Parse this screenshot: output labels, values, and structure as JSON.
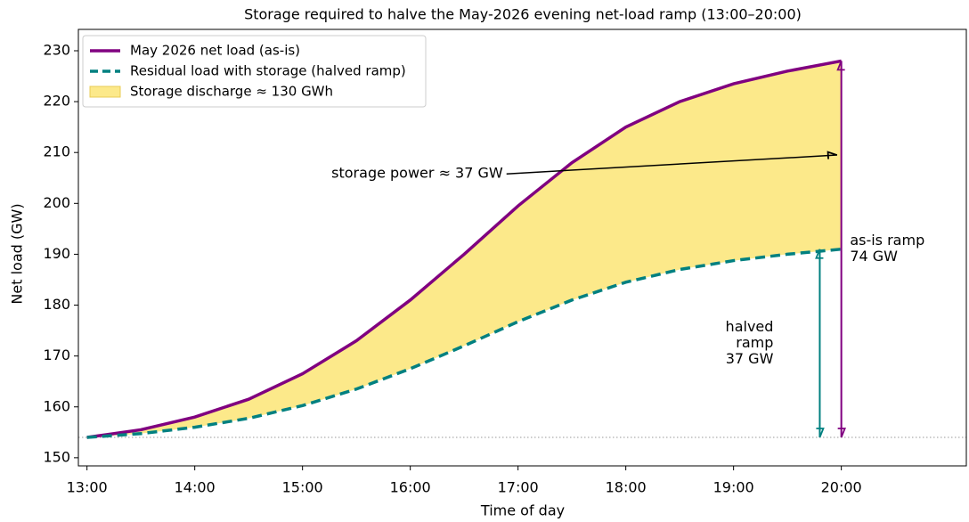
{
  "chart_data": {
    "type": "line",
    "title": "Storage required to halve the May-2026 evening net-load ramp (13:00–20:00)",
    "x_label": "Time of day",
    "y_label": "Net load (GW)",
    "x": [
      13,
      13.5,
      14,
      14.5,
      15,
      15.5,
      16,
      16.5,
      17,
      17.5,
      18,
      18.5,
      19,
      19.5,
      20
    ],
    "series": [
      {
        "name": "May 2026 net load (as-is)",
        "color": "#800080",
        "dash": false,
        "values": [
          154,
          155.5,
          158,
          161.5,
          166.5,
          173,
          181,
          190,
          199.5,
          208,
          215,
          220,
          223.5,
          226,
          228
        ]
      },
      {
        "name": "Residual load with storage (halved ramp)",
        "color": "#008080",
        "dash": true,
        "values": [
          154,
          154.75,
          156,
          157.75,
          160.25,
          163.5,
          167.5,
          172,
          176.75,
          181,
          184.5,
          187,
          188.75,
          190,
          191
        ]
      }
    ],
    "fill": {
      "name": "Storage discharge  ≈ 130 GWh",
      "color": "#fce98a"
    },
    "baseline": 154,
    "xlim": [
      12.92,
      21.16
    ],
    "ylim": [
      148.4,
      234.2
    ],
    "xticks": [
      {
        "value": 13,
        "label": "13:00"
      },
      {
        "value": 14,
        "label": "14:00"
      },
      {
        "value": 15,
        "label": "15:00"
      },
      {
        "value": 16,
        "label": "16:00"
      },
      {
        "value": 17,
        "label": "17:00"
      },
      {
        "value": 18,
        "label": "18:00"
      },
      {
        "value": 19,
        "label": "19:00"
      },
      {
        "value": 20,
        "label": "20:00"
      }
    ],
    "yticks": [
      150,
      160,
      170,
      180,
      190,
      200,
      210,
      220,
      230
    ],
    "legend": "upper left",
    "arrows": [
      {
        "x": 20,
        "y": [
          154,
          228
        ],
        "color": "#800080"
      },
      {
        "x": 19.8,
        "y": [
          154,
          191
        ],
        "color": "#008080"
      }
    ],
    "annotations": [
      {
        "lines": [
          "storage power ≈ 37 GW"
        ],
        "x": 16.86,
        "y": 205.8,
        "align": "right",
        "color": "#000000",
        "arrow_to": [
          19.96,
          209.5
        ]
      },
      {
        "lines": [
          "as-is ramp",
          "74 GW"
        ],
        "x": 20.08,
        "y": 191,
        "align": "left",
        "color": "#800080"
      },
      {
        "lines": [
          "halved",
          "ramp",
          "37 GW"
        ],
        "x": 19.37,
        "y": 172.5,
        "align": "right",
        "color": "#008080"
      }
    ]
  }
}
